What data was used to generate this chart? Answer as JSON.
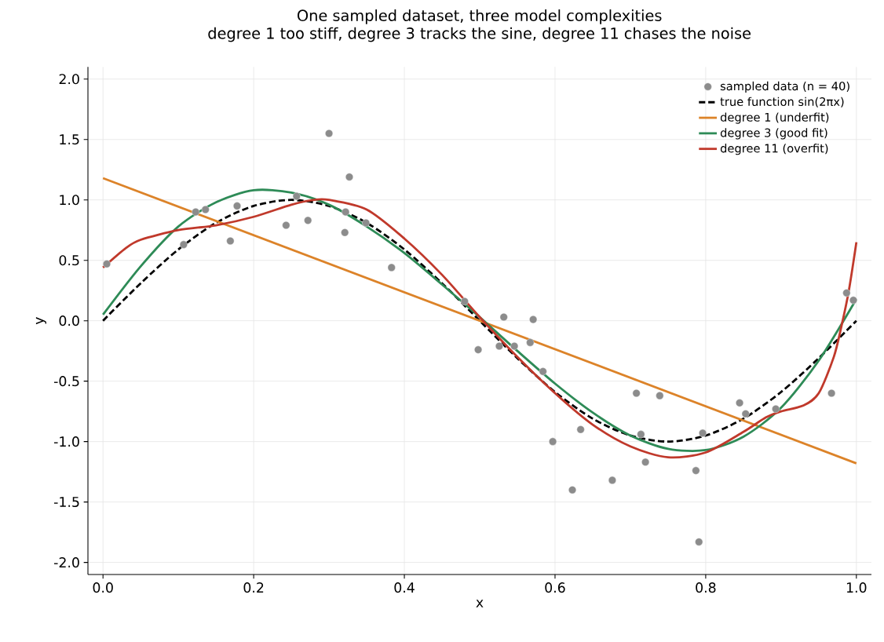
{
  "chart_data": {
    "type": "line",
    "title": "One sampled dataset, three model complexities",
    "subtitle": "degree 1 too stiff, degree 3 tracks the sine, degree 11 chases the noise",
    "xlabel": "x",
    "ylabel": "y",
    "xlim": [
      -0.02,
      1.02
    ],
    "ylim": [
      -2.1,
      2.1
    ],
    "xticks": [
      {
        "value": 0,
        "label": "0.0"
      },
      {
        "value": 0.2,
        "label": "0.2"
      },
      {
        "value": 0.4,
        "label": "0.4"
      },
      {
        "value": 0.6,
        "label": "0.6"
      },
      {
        "value": 0.8,
        "label": "0.8"
      },
      {
        "value": 1,
        "label": "1.0"
      }
    ],
    "yticks": [
      {
        "value": -2,
        "label": "-2.0"
      },
      {
        "value": -1.5,
        "label": "-1.5"
      },
      {
        "value": -1,
        "label": "-1.0"
      },
      {
        "value": -0.5,
        "label": "-0.5"
      },
      {
        "value": 0,
        "label": "0.0"
      },
      {
        "value": 0.5,
        "label": "0.5"
      },
      {
        "value": 1,
        "label": "1.0"
      },
      {
        "value": 1.5,
        "label": "1.5"
      },
      {
        "value": 2,
        "label": "2.0"
      }
    ],
    "grid": true,
    "legend": "top right",
    "series": [
      {
        "name": "sampled data (n = 40)",
        "type": "scatter",
        "marker": "circle",
        "color": "#8c8c8c",
        "x": [
          0.005,
          0.107,
          0.123,
          0.136,
          0.169,
          0.178,
          0.243,
          0.257,
          0.272,
          0.3,
          0.321,
          0.322,
          0.327,
          0.349,
          0.383,
          0.48,
          0.498,
          0.526,
          0.532,
          0.546,
          0.567,
          0.571,
          0.584,
          0.597,
          0.623,
          0.634,
          0.676,
          0.708,
          0.714,
          0.72,
          0.739,
          0.787,
          0.791,
          0.796,
          0.845,
          0.853,
          0.893,
          0.967,
          0.987,
          0.996
        ],
        "values": [
          0.47,
          0.63,
          0.9,
          0.92,
          0.66,
          0.95,
          0.79,
          1.03,
          0.83,
          1.55,
          0.73,
          0.9,
          1.19,
          0.81,
          0.44,
          0.16,
          -0.24,
          -0.21,
          0.03,
          -0.21,
          -0.18,
          0.01,
          -0.42,
          -1.0,
          -1.4,
          -0.9,
          -1.32,
          -0.6,
          -0.94,
          -1.17,
          -0.62,
          -1.24,
          -1.83,
          -0.93,
          -0.68,
          -0.77,
          -0.73,
          -0.6,
          0.23,
          0.17
        ]
      },
      {
        "name": "true function  sin(2πx)",
        "line_style": "dashed",
        "color": "#000000",
        "x": [
          0,
          0.05,
          0.1,
          0.15,
          0.2,
          0.25,
          0.3,
          0.35,
          0.4,
          0.45,
          0.5,
          0.55,
          0.6,
          0.65,
          0.7,
          0.75,
          0.8,
          0.85,
          0.9,
          0.95,
          1.0
        ],
        "values": [
          0,
          0.31,
          0.59,
          0.81,
          0.95,
          1.0,
          0.95,
          0.81,
          0.59,
          0.31,
          0,
          -0.31,
          -0.59,
          -0.81,
          -0.95,
          -1.0,
          -0.95,
          -0.81,
          -0.59,
          -0.31,
          0
        ]
      },
      {
        "name": "degree 1  (underfit)",
        "line_style": "solid",
        "color": "#dc8329",
        "x": [
          0,
          1.0
        ],
        "values": [
          1.18,
          -1.18
        ]
      },
      {
        "name": "degree 3  (good fit)",
        "line_style": "solid",
        "color": "#2e8b57",
        "x": [
          0,
          0.05,
          0.1,
          0.15,
          0.2,
          0.25,
          0.3,
          0.35,
          0.4,
          0.45,
          0.5,
          0.55,
          0.6,
          0.65,
          0.7,
          0.75,
          0.8,
          0.85,
          0.9,
          0.95,
          1.0
        ],
        "values": [
          0.05,
          0.45,
          0.78,
          0.98,
          1.08,
          1.06,
          0.96,
          0.78,
          0.56,
          0.3,
          0.03,
          -0.25,
          -0.52,
          -0.76,
          -0.95,
          -1.06,
          -1.07,
          -0.96,
          -0.72,
          -0.33,
          0.18
        ]
      },
      {
        "name": "degree 11  (overfit)",
        "line_style": "solid",
        "color": "#c0392b",
        "x": [
          0,
          0.03,
          0.05,
          0.1,
          0.15,
          0.2,
          0.25,
          0.28,
          0.3,
          0.35,
          0.4,
          0.45,
          0.5,
          0.55,
          0.6,
          0.65,
          0.7,
          0.75,
          0.8,
          0.85,
          0.88,
          0.9,
          0.93,
          0.95,
          0.97,
          0.98,
          0.99,
          1.0
        ],
        "values": [
          0.44,
          0.6,
          0.67,
          0.75,
          0.79,
          0.86,
          0.96,
          1.0,
          1.0,
          0.92,
          0.68,
          0.38,
          0.03,
          -0.3,
          -0.6,
          -0.86,
          -1.04,
          -1.13,
          -1.09,
          -0.92,
          -0.8,
          -0.75,
          -0.7,
          -0.6,
          -0.3,
          -0.05,
          0.25,
          0.65
        ]
      }
    ]
  }
}
